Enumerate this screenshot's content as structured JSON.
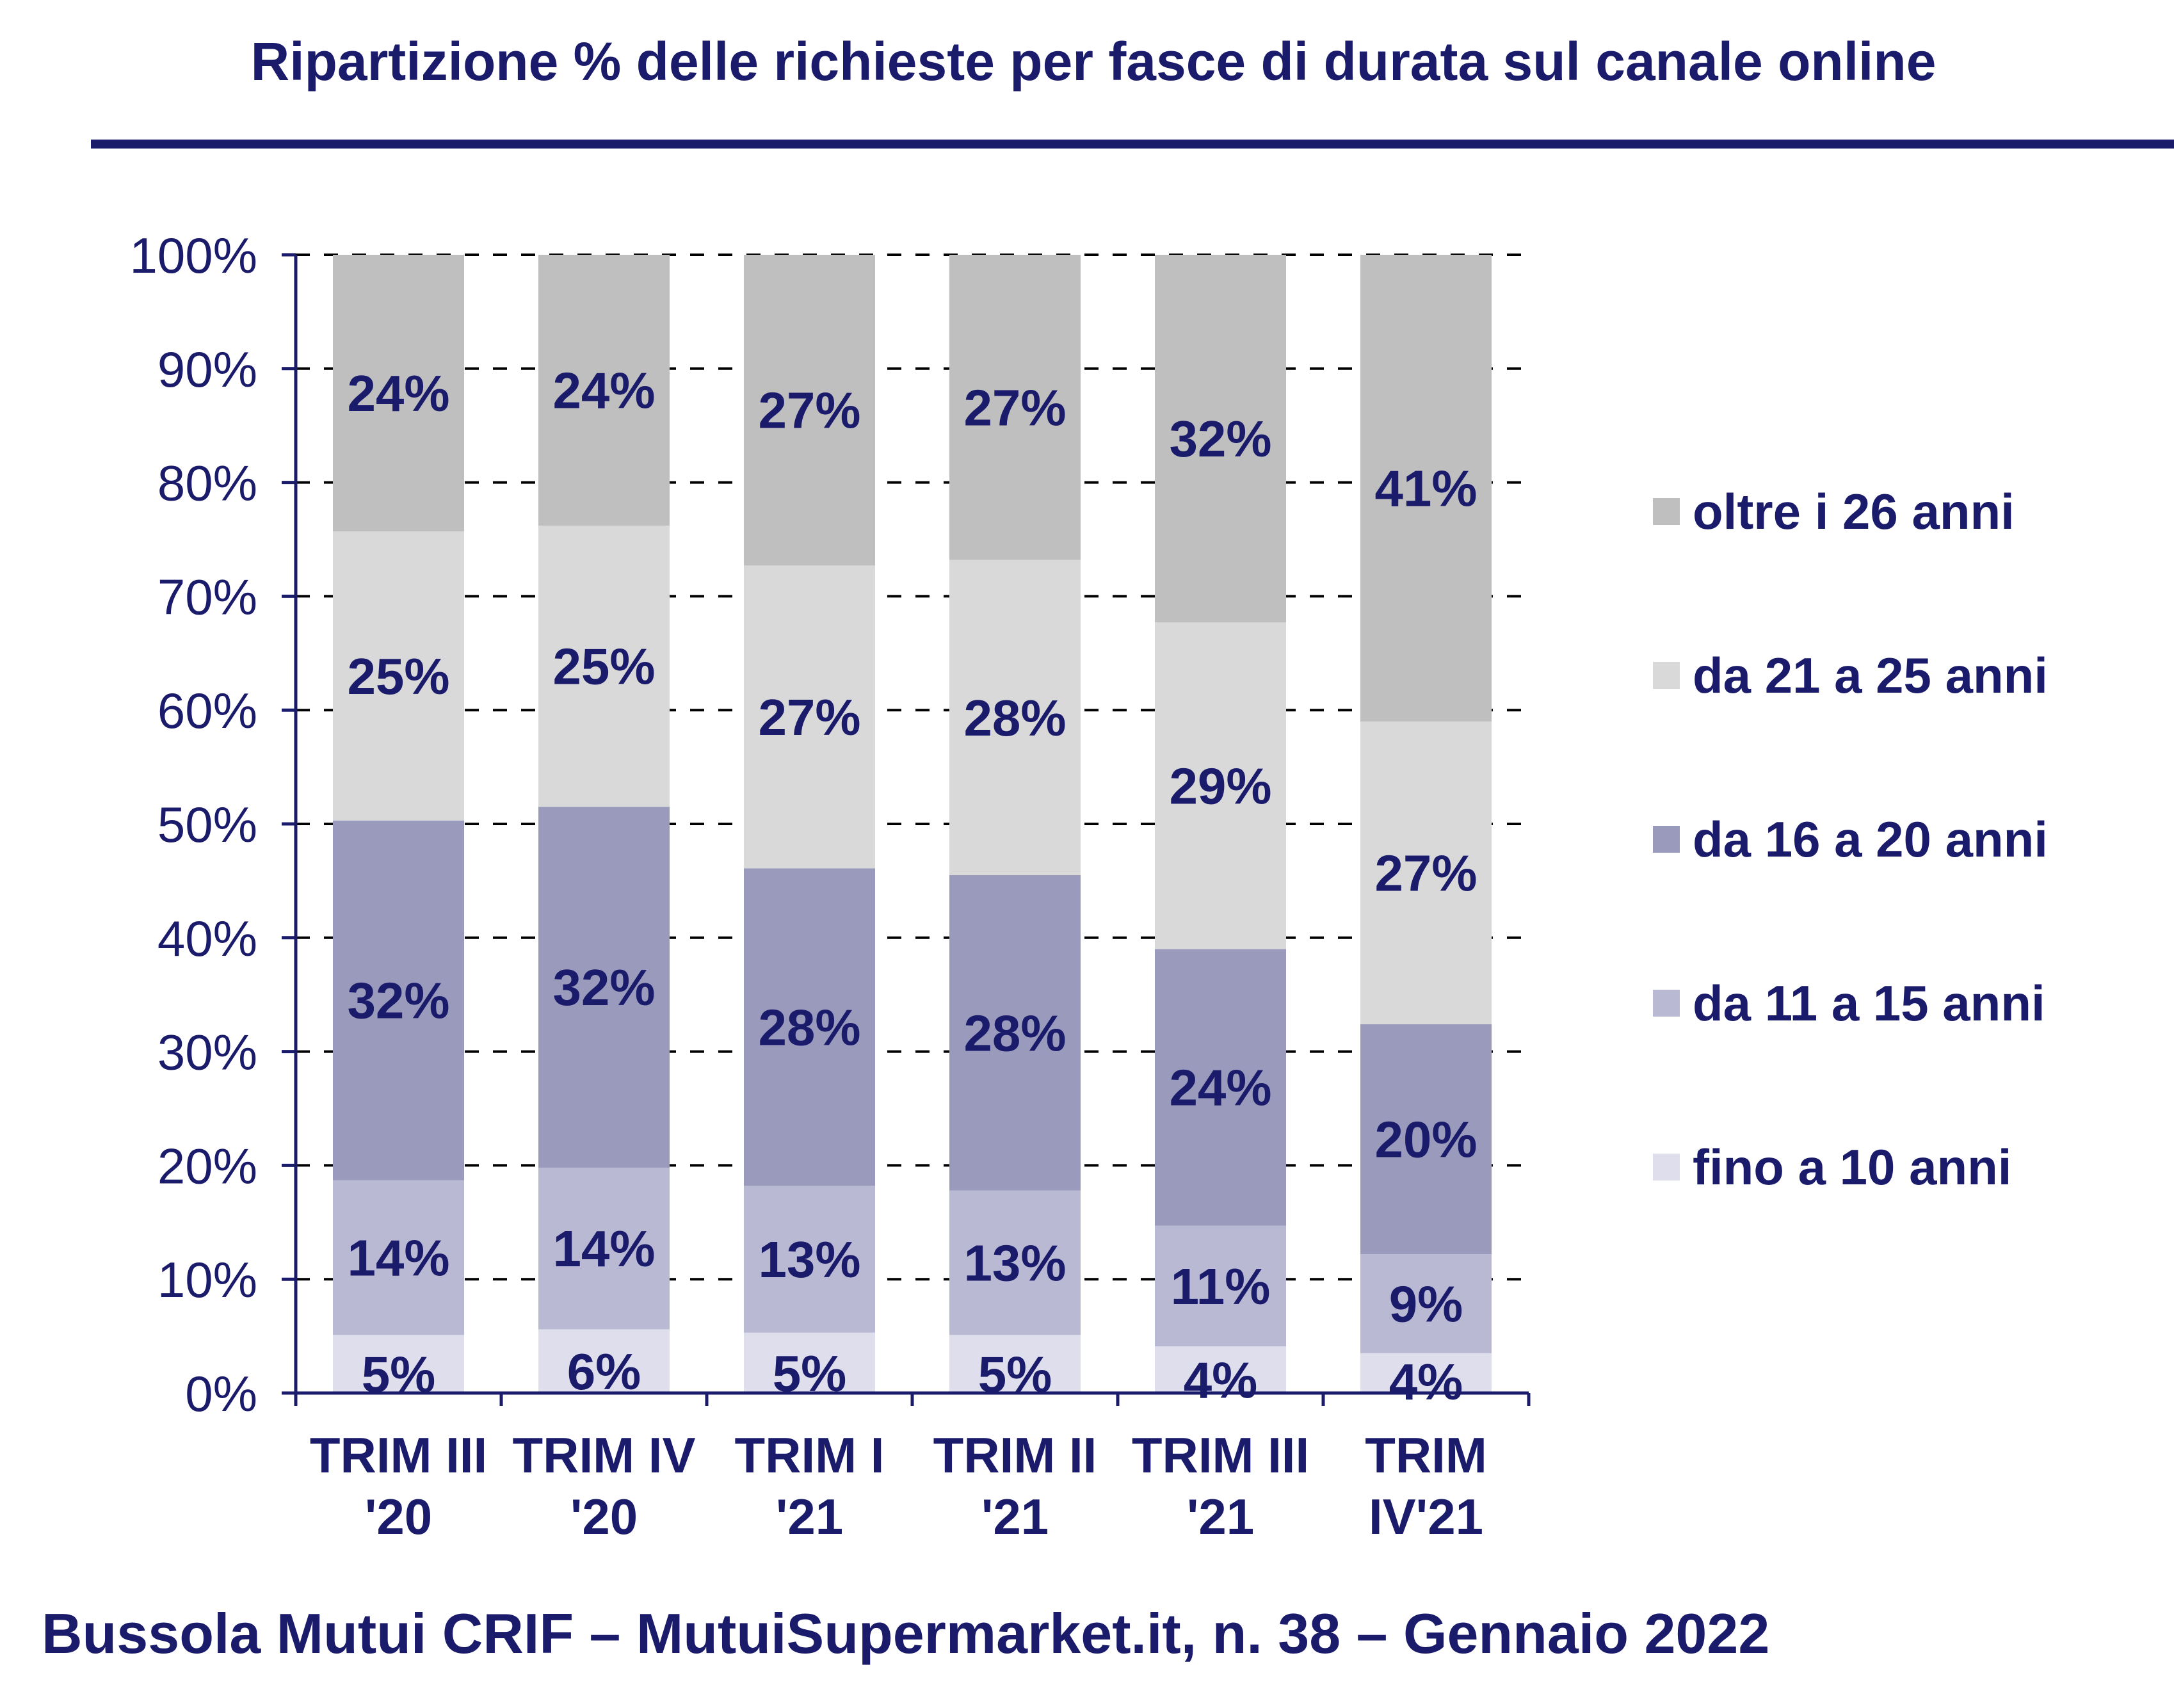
{
  "chart_data": {
    "type": "bar",
    "stacked": true,
    "title": "Ripartizione % delle richieste per fasce di durata sul canale online",
    "footer": "Bussola Mutui CRIF – MutuiSupermarket.it, n. 38 – Gennaio 2022",
    "categories": [
      [
        "TRIM III",
        "'20"
      ],
      [
        "TRIM IV",
        "'20"
      ],
      [
        "TRIM I",
        "'21"
      ],
      [
        "TRIM II",
        "'21"
      ],
      [
        "TRIM III",
        "'21"
      ],
      [
        "TRIM",
        "IV'21"
      ]
    ],
    "ylim": [
      0,
      100
    ],
    "yticks": [
      "0%",
      "10%",
      "20%",
      "30%",
      "40%",
      "50%",
      "60%",
      "70%",
      "80%",
      "90%",
      "100%"
    ],
    "grid": true,
    "legend_position": "right",
    "series": [
      {
        "name": "fino a 10 anni",
        "color": "#dedeec",
        "values": [
          5.1,
          5.6,
          5.3,
          5.1,
          4.1,
          3.5
        ],
        "labels": [
          "5%",
          "6%",
          "5%",
          "5%",
          "4%",
          "4%"
        ]
      },
      {
        "name": "da 11 a 15 anni",
        "color": "#b9b9d4",
        "values": [
          13.6,
          14.2,
          12.9,
          12.7,
          10.6,
          8.7
        ],
        "labels": [
          "14%",
          "14%",
          "13%",
          "13%",
          "11%",
          "9%"
        ]
      },
      {
        "name": "da 16 a 20 anni",
        "color": "#9a9abd",
        "values": [
          31.6,
          31.7,
          27.9,
          27.7,
          24.3,
          20.2
        ],
        "labels": [
          "32%",
          "32%",
          "28%",
          "28%",
          "24%",
          "20%"
        ]
      },
      {
        "name": "da 21 a 25 anni",
        "color": "#d9d9d9",
        "values": [
          25.4,
          24.7,
          26.6,
          27.7,
          28.7,
          26.6
        ],
        "labels": [
          "25%",
          "25%",
          "27%",
          "28%",
          "29%",
          "27%"
        ]
      },
      {
        "name": "oltre i 26 anni",
        "color": "#bfbfbf",
        "values": [
          24.3,
          23.8,
          27.3,
          26.8,
          32.3,
          41.0
        ],
        "labels": [
          "24%",
          "24%",
          "27%",
          "27%",
          "32%",
          "41%"
        ]
      }
    ],
    "legend_order": [
      "oltre i 26 anni",
      "da 21 a 25 anni",
      "da 16 a 20 anni",
      "da 11 a 15 anni",
      "fino a 10 anni"
    ],
    "colors": {
      "text": "#1b1b6b",
      "axis": "#1b1b6b",
      "grid": "#000000",
      "rule": "#1b1b6b"
    }
  }
}
